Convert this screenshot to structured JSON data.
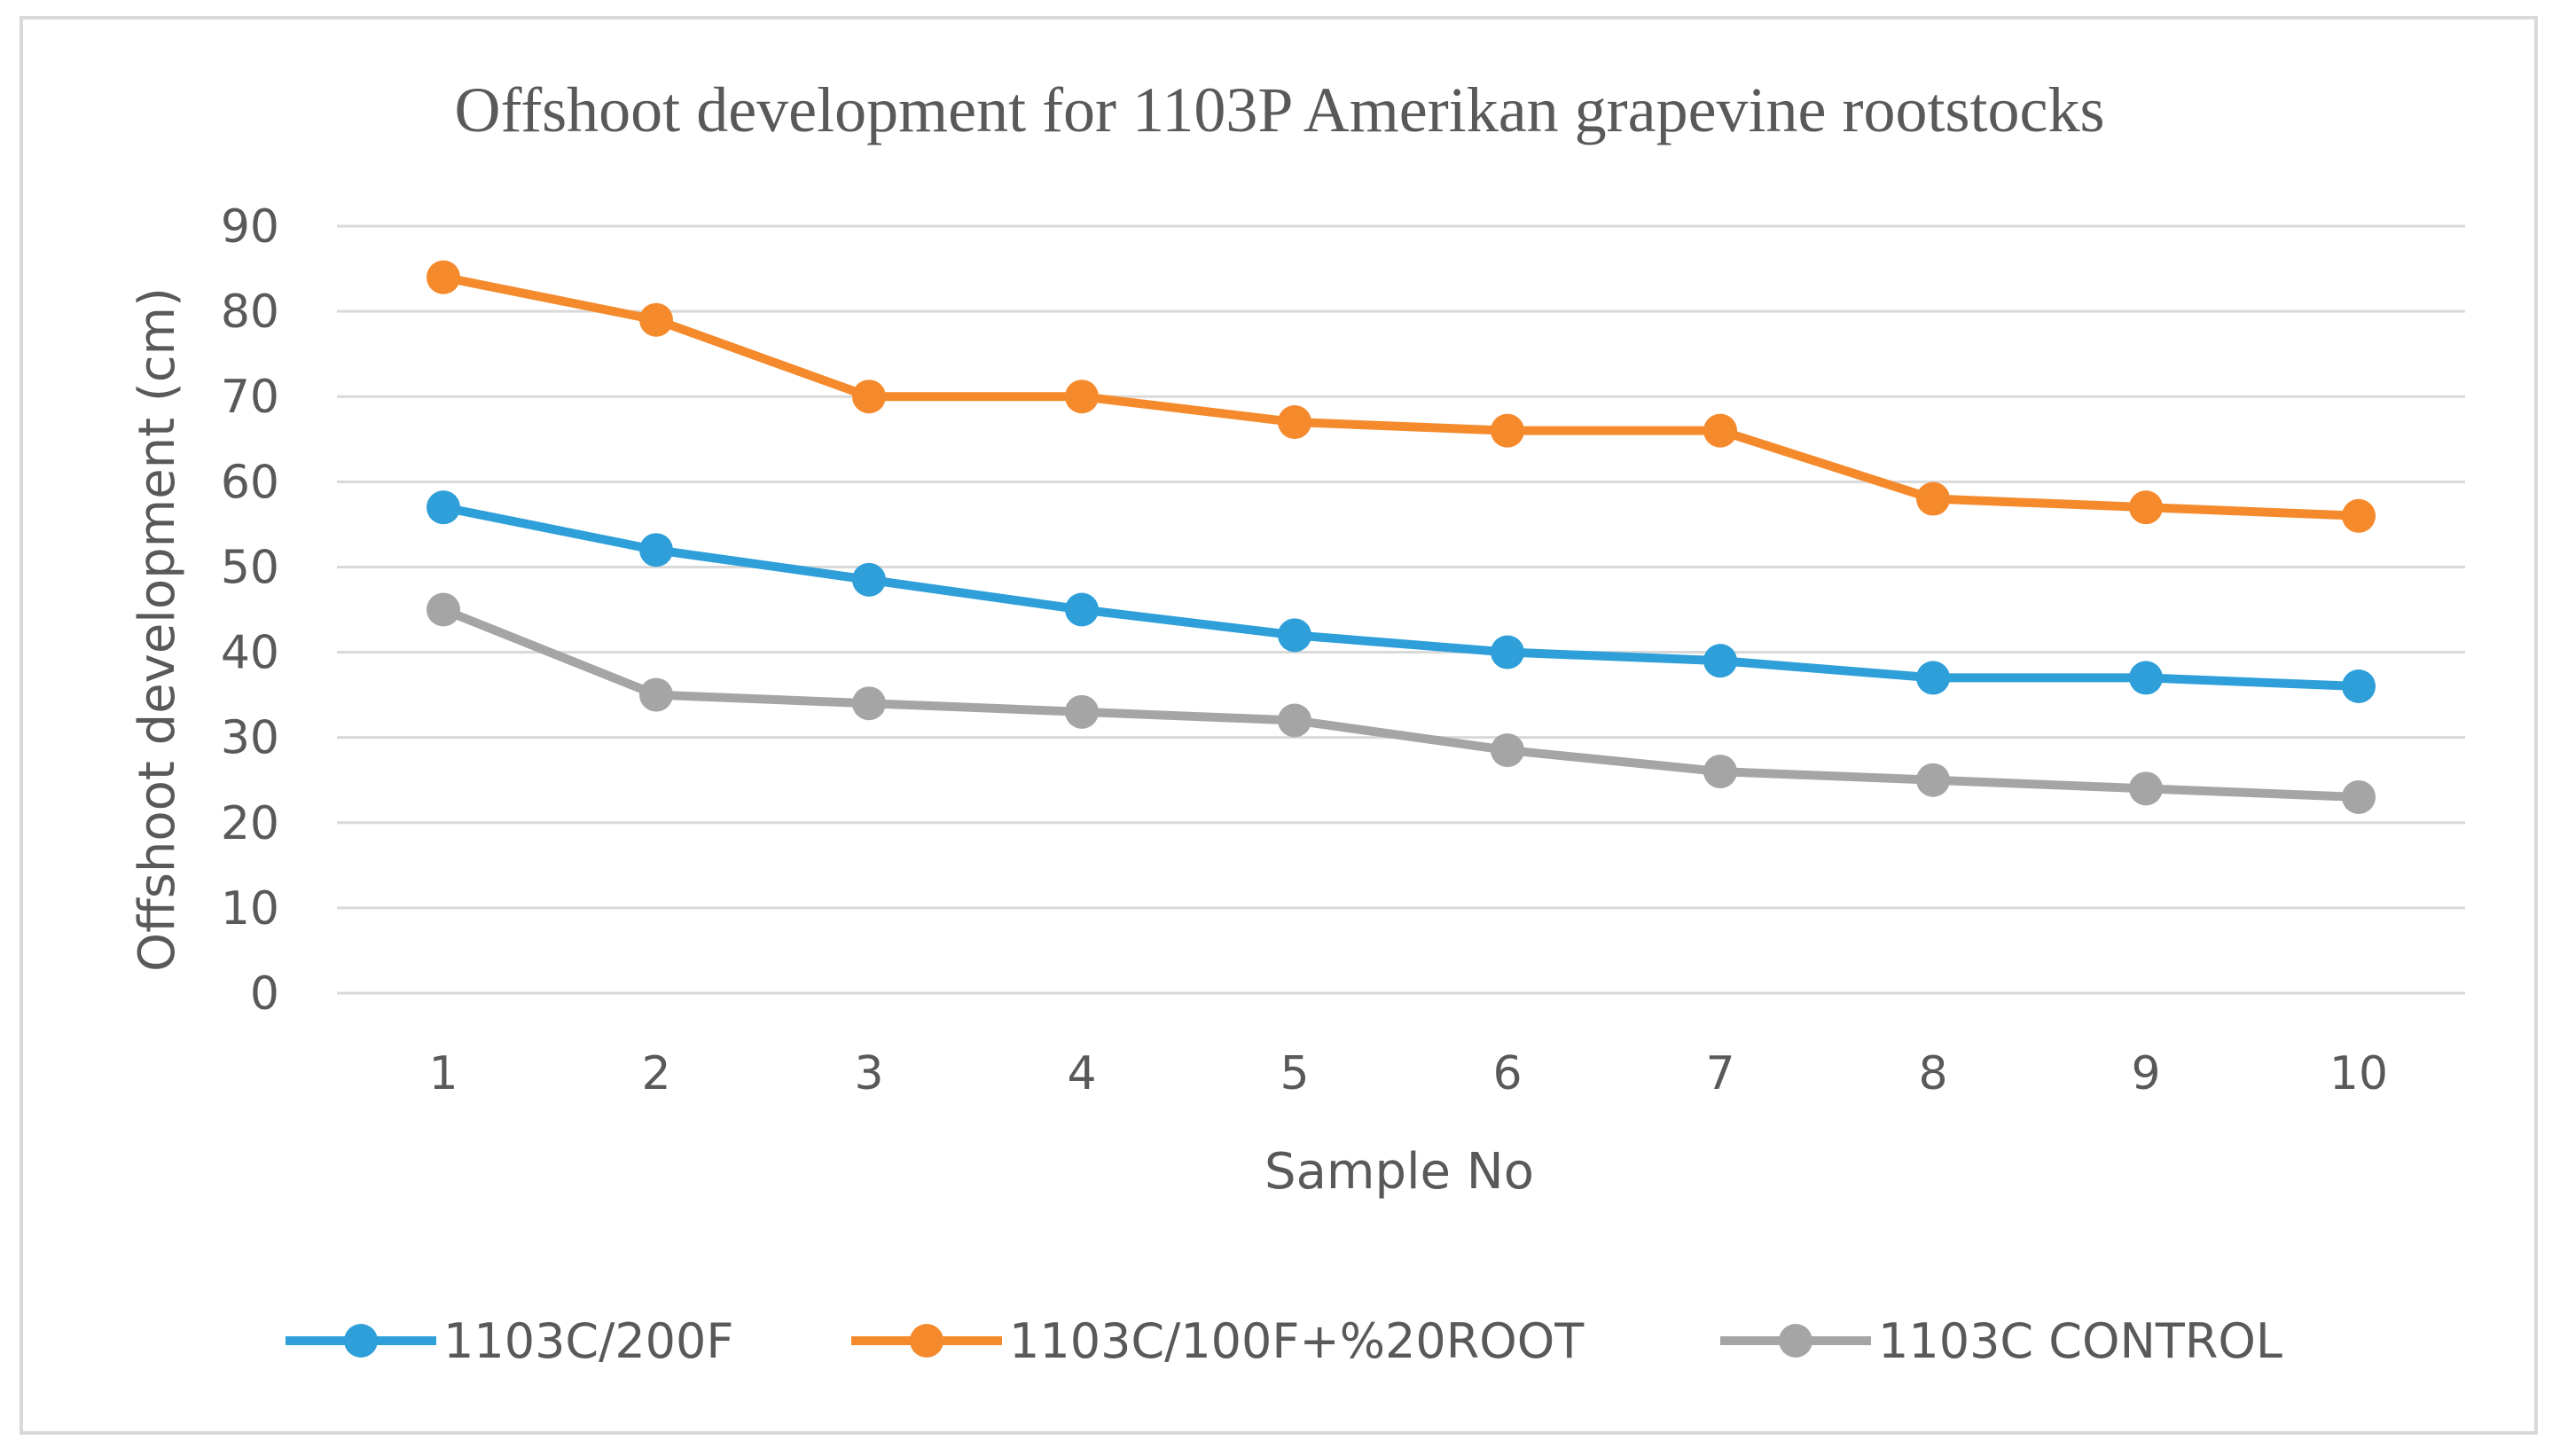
{
  "chart_data": {
    "type": "line",
    "title": "Offshoot development for 1103P Amerikan grapevine rootstocks",
    "xlabel": "Sample No",
    "ylabel": "Offshoot development (cm)",
    "ylim": [
      0,
      90
    ],
    "y_ticks": [
      "0",
      "10",
      "20",
      "30",
      "40",
      "50",
      "60",
      "70",
      "80",
      "90"
    ],
    "categories": [
      "1",
      "2",
      "3",
      "4",
      "5",
      "6",
      "7",
      "8",
      "9",
      "10"
    ],
    "grid": true,
    "legend_position": "bottom",
    "series": [
      {
        "name": "1103C/200F",
        "color": "#2e9fd9",
        "values": [
          57,
          52,
          48.5,
          45,
          42,
          40,
          39,
          37,
          37,
          36
        ]
      },
      {
        "name": "1103C/100F+%20ROOT",
        "color": "#f58a2c",
        "values": [
          84,
          79,
          70,
          70,
          67,
          66,
          66,
          58,
          57,
          56
        ]
      },
      {
        "name": "1103C CONTROL",
        "color": "#a5a5a5",
        "values": [
          45,
          35,
          34,
          33,
          32,
          28.5,
          26,
          25,
          24,
          23
        ]
      }
    ]
  }
}
